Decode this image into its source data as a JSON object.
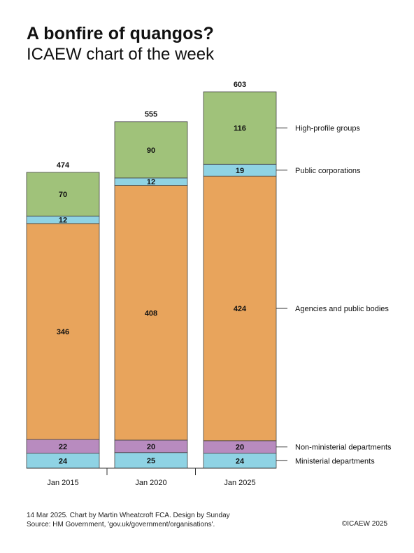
{
  "header": {
    "title": "A bonfire of quangos?",
    "subtitle": "ICAEW chart of the week"
  },
  "chart_data": {
    "type": "bar",
    "stacked": true,
    "categories": [
      "Jan 2015",
      "Jan 2020",
      "Jan 2025"
    ],
    "totals": [
      474,
      555,
      603
    ],
    "series": [
      {
        "name": "Ministerial departments",
        "values": [
          24,
          25,
          24
        ],
        "color": "#8fd3e4"
      },
      {
        "name": "Non-ministerial departments",
        "values": [
          22,
          20,
          20
        ],
        "color": "#b88bbf"
      },
      {
        "name": "Agencies and public bodies",
        "values": [
          346,
          408,
          424
        ],
        "color": "#e8a45c"
      },
      {
        "name": "Public corporations",
        "values": [
          12,
          12,
          19
        ],
        "color": "#8fd3e4"
      },
      {
        "name": "High-profile groups",
        "values": [
          70,
          90,
          116
        ],
        "color": "#a0c27a"
      }
    ],
    "legend_position": "right",
    "ylim": [
      0,
      603
    ]
  },
  "footer": {
    "line1": "14 Mar 2025.   Chart by Martin Wheatcroft FCA.  Design by Sunday",
    "line2": "Source: HM Government, 'gov.uk/government/organisations'.",
    "copyright": "©ICAEW 2025"
  }
}
